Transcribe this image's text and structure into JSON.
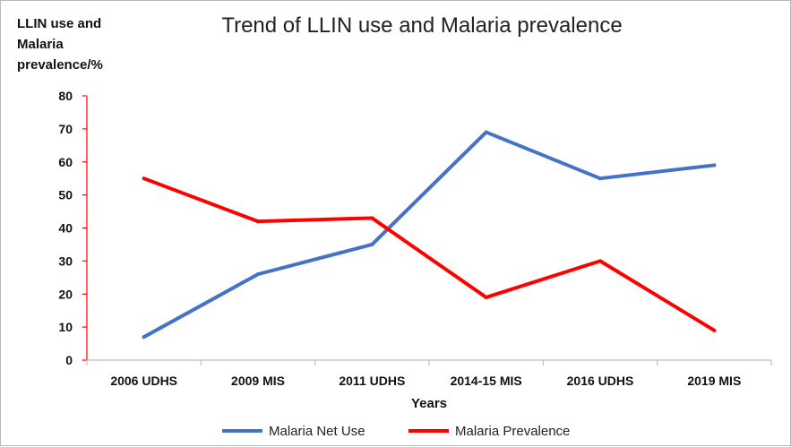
{
  "chart_data": {
    "type": "line",
    "title": "Trend of LLIN use and Malaria prevalence",
    "ylabel_lines": [
      "LLIN use and",
      "Malaria",
      "prevalence/%"
    ],
    "xlabel": "Years",
    "categories": [
      "2006 UDHS",
      "2009 MIS",
      "2011 UDHS",
      "2014-15 MIS",
      "2016 UDHS",
      "2019 MIS"
    ],
    "ylim": [
      0,
      80
    ],
    "yticks": [
      0,
      10,
      20,
      30,
      40,
      50,
      60,
      70,
      80
    ],
    "grid": false,
    "legend_position": "bottom",
    "series": [
      {
        "name": "Malaria Net Use",
        "color": "#4472C4",
        "values": [
          7,
          26,
          35,
          69,
          55,
          59
        ]
      },
      {
        "name": "Malaria Prevalence",
        "color": "#FF0000",
        "values": [
          55,
          42,
          43,
          19,
          30,
          9
        ]
      }
    ],
    "axis_color": "#FF0000"
  }
}
